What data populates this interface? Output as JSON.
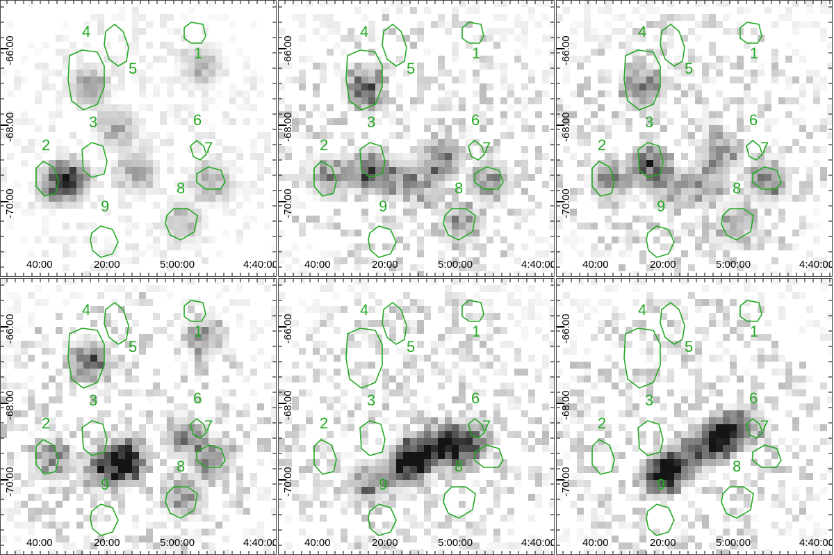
{
  "figure": {
    "colors": {
      "contour": "#22a822",
      "frame": "#444444",
      "label": "#22a822"
    },
    "y_ticks": [
      "-66:00",
      "-68:00",
      "-70:00"
    ],
    "x_ticks": [
      "40:00",
      "20:00",
      "5:00:00",
      "4:40:00"
    ],
    "region_labels": [
      "1",
      "2",
      "3",
      "4",
      "5",
      "6",
      "7",
      "8",
      "9"
    ],
    "panels": [
      {
        "id": "top-left"
      },
      {
        "id": "top-middle"
      },
      {
        "id": "top-right"
      },
      {
        "id": "bottom-left"
      },
      {
        "id": "bottom-middle"
      },
      {
        "id": "bottom-right"
      }
    ]
  }
}
